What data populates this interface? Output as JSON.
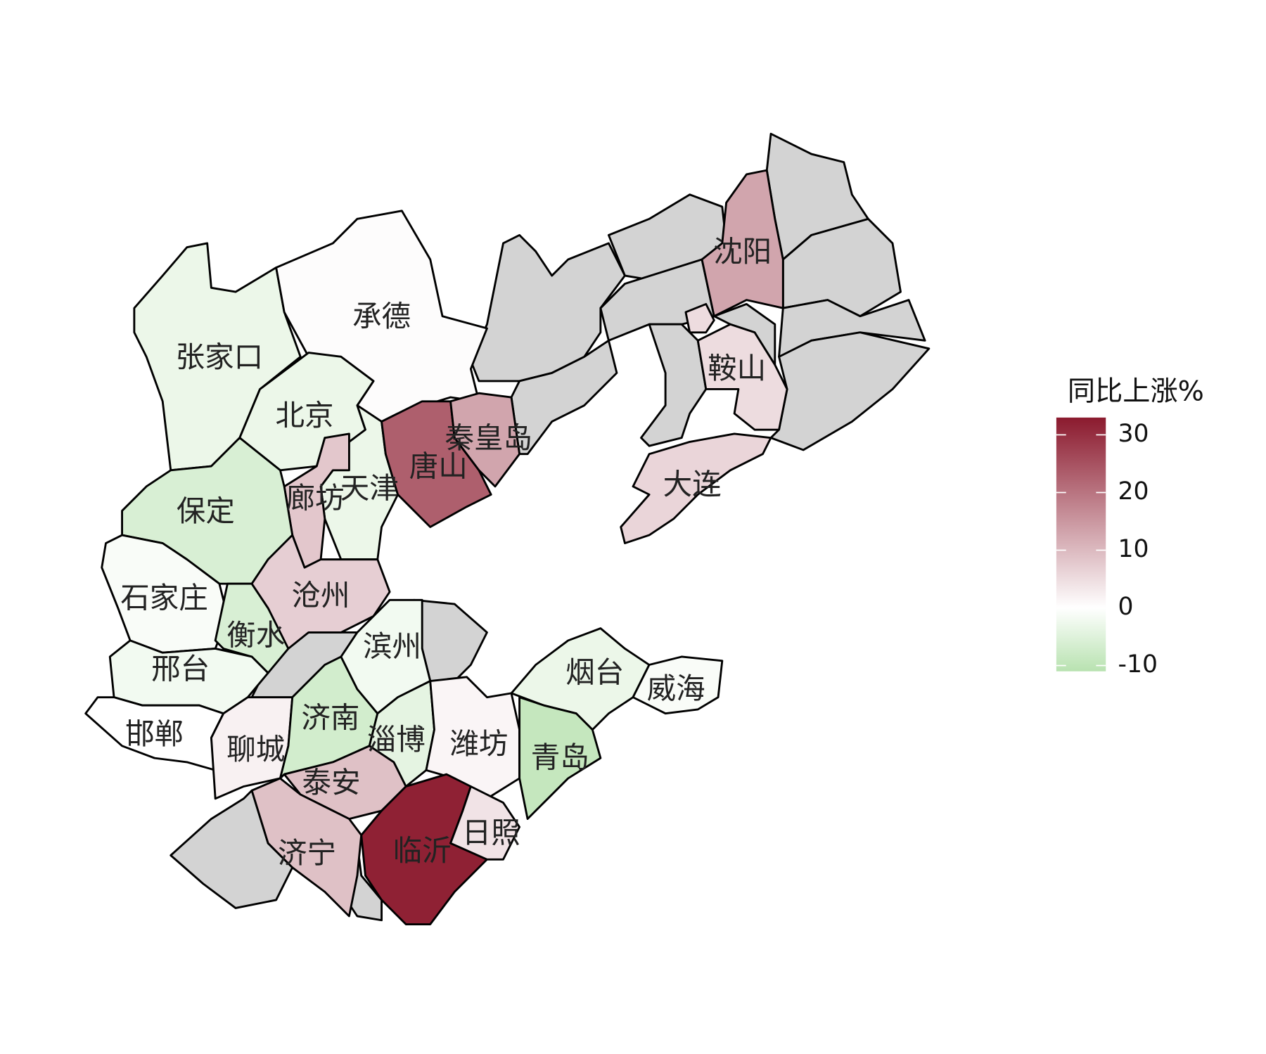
{
  "chart_data": {
    "type": "choropleth",
    "legend_title": "同比上涨%",
    "colorbar": {
      "lim": [
        -11,
        33
      ],
      "ticks": [
        -10,
        0,
        10,
        20,
        30
      ],
      "colors": [
        "#b8e2b0",
        "#ffffff",
        "#8b1a2e"
      ]
    },
    "missing_color": "#d3d3d3",
    "regions": [
      {
        "name": "张家口",
        "value": -3
      },
      {
        "name": "承德",
        "value": 0.5
      },
      {
        "name": "北京",
        "value": -3
      },
      {
        "name": "天津",
        "value": -3
      },
      {
        "name": "廊坊",
        "value": 8
      },
      {
        "name": "唐山",
        "value": 23
      },
      {
        "name": "秦皇岛",
        "value": 13
      },
      {
        "name": "保定",
        "value": -6
      },
      {
        "name": "石家庄",
        "value": -1
      },
      {
        "name": "衡水",
        "value": -6
      },
      {
        "name": "沧州",
        "value": 7
      },
      {
        "name": "邢台",
        "value": -2
      },
      {
        "name": "邯郸",
        "value": 0
      },
      {
        "name": "聊城",
        "value": 2
      },
      {
        "name": "济南",
        "value": -7
      },
      {
        "name": "滨州",
        "value": -2
      },
      {
        "name": "淄博",
        "value": -4
      },
      {
        "name": "潍坊",
        "value": 1.5
      },
      {
        "name": "烟台",
        "value": -3
      },
      {
        "name": "威海",
        "value": -1
      },
      {
        "name": "青岛",
        "value": -9
      },
      {
        "name": "泰安",
        "value": 9
      },
      {
        "name": "济宁",
        "value": 9
      },
      {
        "name": "临沂",
        "value": 32
      },
      {
        "name": "日照",
        "value": 4
      },
      {
        "name": "沈阳",
        "value": 13
      },
      {
        "name": "鞍山",
        "value": 5
      },
      {
        "name": "大连",
        "value": 6
      },
      {
        "name": null,
        "value": 5
      }
    ]
  }
}
